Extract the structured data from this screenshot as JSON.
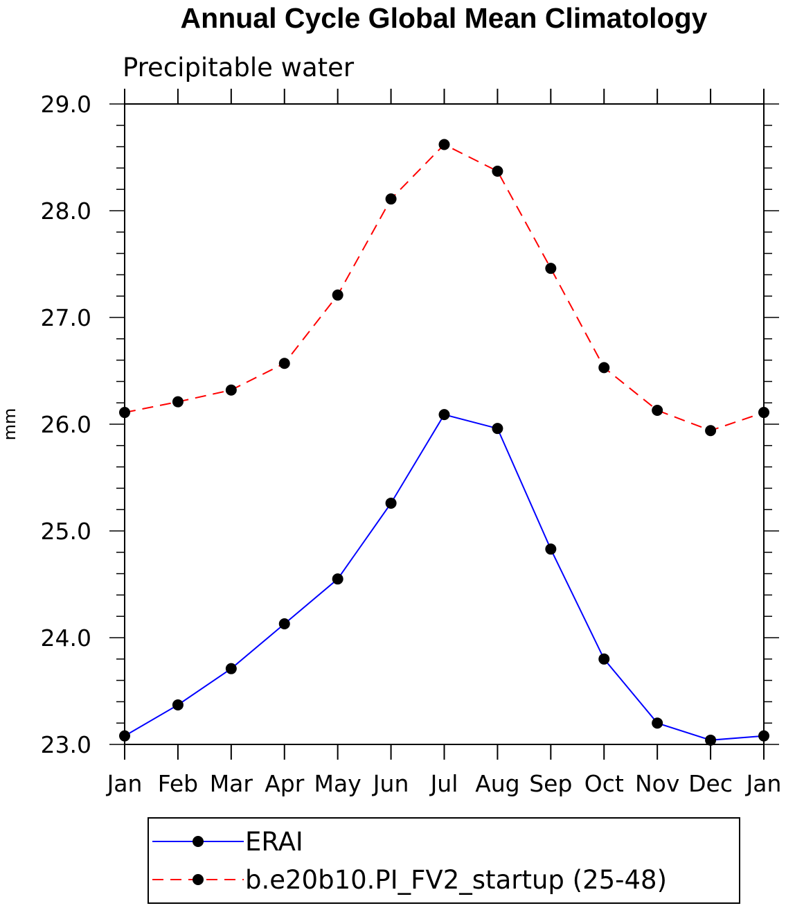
{
  "chart_data": {
    "type": "line",
    "title": "Annual Cycle Global Mean Climatology",
    "subtitle": "Precipitable water",
    "ylabel": "mm",
    "xlabel": "",
    "categories": [
      "Jan",
      "Feb",
      "Mar",
      "Apr",
      "May",
      "Jun",
      "Jul",
      "Aug",
      "Sep",
      "Oct",
      "Nov",
      "Dec",
      "Jan"
    ],
    "ylim": [
      23.0,
      29.0
    ],
    "yticks": [
      "23.0",
      "24.0",
      "25.0",
      "26.0",
      "27.0",
      "28.0",
      "29.0"
    ],
    "grid": false,
    "legend_position": "bottom",
    "series": [
      {
        "name": "ERAI",
        "color": "#0000ff",
        "line_style": "solid",
        "marker": "filled-circle",
        "values": [
          23.08,
          23.37,
          23.71,
          24.13,
          24.55,
          25.26,
          26.09,
          25.96,
          24.83,
          23.8,
          23.2,
          23.04,
          23.08
        ]
      },
      {
        "name": "b.e20b10.PI_FV2_startup (25-48)",
        "color": "#ff0000",
        "line_style": "dashed",
        "marker": "filled-circle",
        "values": [
          26.11,
          26.21,
          26.32,
          26.57,
          27.21,
          28.11,
          28.62,
          28.37,
          27.46,
          26.53,
          26.13,
          25.94,
          26.11
        ]
      }
    ]
  }
}
